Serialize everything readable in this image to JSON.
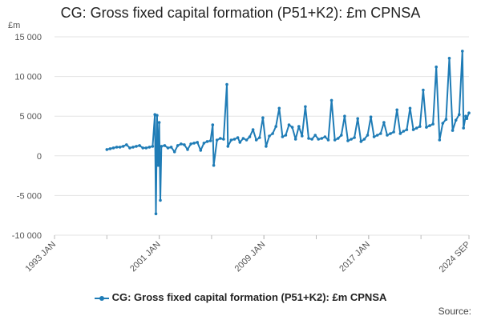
{
  "chart_data": {
    "type": "line",
    "title": "CG: Gross fixed capital formation (P51+K2): £m CPNSA",
    "ylabel": "£m",
    "xlabel": "",
    "ylim": [
      -10000,
      15000
    ],
    "y_ticks": [
      "15 000",
      "10 000",
      "5 000",
      "0",
      "-5 000",
      "-10 000"
    ],
    "y_tick_values": [
      15000,
      10000,
      5000,
      0,
      -5000,
      -10000
    ],
    "x_range": [
      "1993 JAN",
      "2024 SEP"
    ],
    "x_ticks": [
      "1993 JAN",
      "2001 JAN",
      "2009 JAN",
      "2017 JAN",
      "2024 SEP"
    ],
    "grid": "horizontal",
    "legend": "bottom",
    "color": "#1f7cb6",
    "series": [
      {
        "name": "CG: Gross fixed capital formation (P51+K2): £m CPNSA",
        "points": [
          [
            "1997-01",
            800
          ],
          [
            "1997-04",
            900
          ],
          [
            "1997-07",
            1000
          ],
          [
            "1997-10",
            1100
          ],
          [
            "1998-01",
            1100
          ],
          [
            "1998-04",
            1200
          ],
          [
            "1998-07",
            1400
          ],
          [
            "1998-10",
            1000
          ],
          [
            "1999-01",
            1100
          ],
          [
            "1999-04",
            1200
          ],
          [
            "1999-07",
            1300
          ],
          [
            "1999-10",
            1000
          ],
          [
            "2000-01",
            1000
          ],
          [
            "2000-04",
            1100
          ],
          [
            "2000-07",
            1200
          ],
          [
            "2000-09",
            5200
          ],
          [
            "2000-10",
            -7300
          ],
          [
            "2000-11",
            5100
          ],
          [
            "2000-12",
            -1200
          ],
          [
            "2001-01",
            4200
          ],
          [
            "2001-02",
            -5600
          ],
          [
            "2001-03",
            1200
          ],
          [
            "2001-06",
            1300
          ],
          [
            "2001-09",
            1000
          ],
          [
            "2001-12",
            1100
          ],
          [
            "2002-03",
            500
          ],
          [
            "2002-06",
            1300
          ],
          [
            "2002-09",
            1500
          ],
          [
            "2002-12",
            1400
          ],
          [
            "2003-03",
            800
          ],
          [
            "2003-06",
            1500
          ],
          [
            "2003-09",
            1600
          ],
          [
            "2003-12",
            1700
          ],
          [
            "2004-03",
            700
          ],
          [
            "2004-06",
            1600
          ],
          [
            "2004-09",
            1800
          ],
          [
            "2004-12",
            1900
          ],
          [
            "2005-02",
            3900
          ],
          [
            "2005-03",
            -1200
          ],
          [
            "2005-06",
            2000
          ],
          [
            "2005-09",
            2200
          ],
          [
            "2005-12",
            2100
          ],
          [
            "2006-03",
            9000
          ],
          [
            "2006-04",
            1200
          ],
          [
            "2006-07",
            2000
          ],
          [
            "2006-10",
            2100
          ],
          [
            "2007-01",
            2300
          ],
          [
            "2007-03",
            1700
          ],
          [
            "2007-06",
            2200
          ],
          [
            "2007-09",
            2000
          ],
          [
            "2007-12",
            2400
          ],
          [
            "2008-03",
            3300
          ],
          [
            "2008-06",
            2000
          ],
          [
            "2008-09",
            2300
          ],
          [
            "2008-12",
            4800
          ],
          [
            "2009-03",
            1200
          ],
          [
            "2009-06",
            2500
          ],
          [
            "2009-09",
            2800
          ],
          [
            "2009-12",
            3700
          ],
          [
            "2010-03",
            6000
          ],
          [
            "2010-06",
            2400
          ],
          [
            "2010-09",
            2600
          ],
          [
            "2010-12",
            3900
          ],
          [
            "2011-03",
            3600
          ],
          [
            "2011-06",
            2100
          ],
          [
            "2011-09",
            3700
          ],
          [
            "2011-12",
            2500
          ],
          [
            "2012-03",
            6200
          ],
          [
            "2012-06",
            2200
          ],
          [
            "2012-09",
            2100
          ],
          [
            "2012-12",
            2600
          ],
          [
            "2013-03",
            2100
          ],
          [
            "2013-06",
            2200
          ],
          [
            "2013-09",
            2400
          ],
          [
            "2013-12",
            2000
          ],
          [
            "2014-03",
            7000
          ],
          [
            "2014-06",
            2000
          ],
          [
            "2014-09",
            2200
          ],
          [
            "2014-12",
            2600
          ],
          [
            "2015-03",
            5000
          ],
          [
            "2015-06",
            1900
          ],
          [
            "2015-09",
            2100
          ],
          [
            "2015-12",
            2300
          ],
          [
            "2016-03",
            4700
          ],
          [
            "2016-06",
            1800
          ],
          [
            "2016-09",
            2100
          ],
          [
            "2016-12",
            2600
          ],
          [
            "2017-03",
            4900
          ],
          [
            "2017-06",
            2400
          ],
          [
            "2017-09",
            2600
          ],
          [
            "2017-12",
            2800
          ],
          [
            "2018-03",
            4200
          ],
          [
            "2018-06",
            2600
          ],
          [
            "2018-09",
            2800
          ],
          [
            "2018-12",
            3000
          ],
          [
            "2019-03",
            5800
          ],
          [
            "2019-06",
            2800
          ],
          [
            "2019-09",
            3100
          ],
          [
            "2019-12",
            3300
          ],
          [
            "2020-03",
            6000
          ],
          [
            "2020-06",
            3300
          ],
          [
            "2020-09",
            3500
          ],
          [
            "2020-12",
            3700
          ],
          [
            "2021-03",
            8300
          ],
          [
            "2021-06",
            3600
          ],
          [
            "2021-09",
            3800
          ],
          [
            "2021-12",
            4000
          ],
          [
            "2022-03",
            11200
          ],
          [
            "2022-06",
            2000
          ],
          [
            "2022-09",
            4100
          ],
          [
            "2022-12",
            4600
          ],
          [
            "2023-03",
            12300
          ],
          [
            "2023-06",
            3200
          ],
          [
            "2023-09",
            4500
          ],
          [
            "2023-12",
            5200
          ],
          [
            "2024-03",
            13200
          ],
          [
            "2024-04",
            3500
          ],
          [
            "2024-06",
            5000
          ],
          [
            "2024-07",
            4700
          ],
          [
            "2024-09",
            5400
          ]
        ]
      }
    ]
  },
  "legend_label": "CG: Gross fixed capital formation (P51+K2): £m CPNSA",
  "source_label": "Source:"
}
